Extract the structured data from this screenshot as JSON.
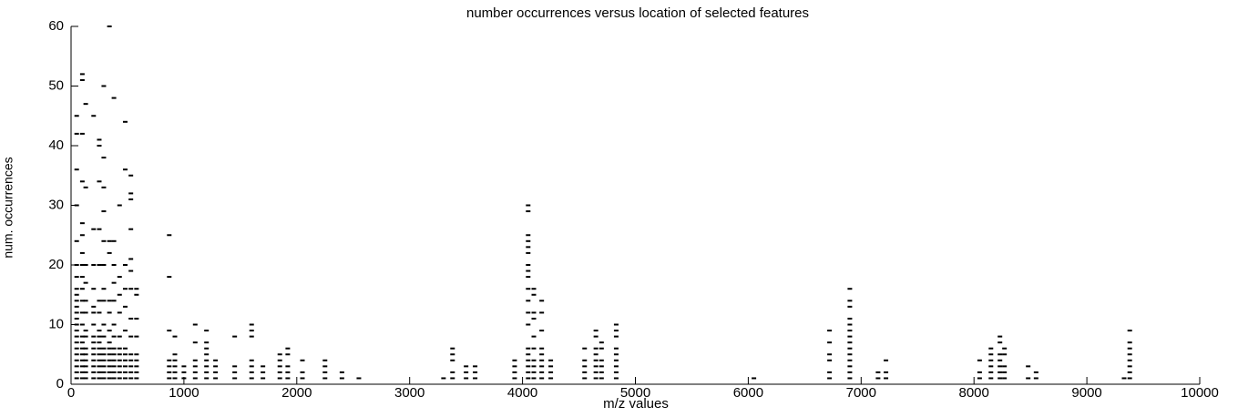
{
  "chart_data": {
    "type": "scatter",
    "title": "number occurrences versus location of selected features",
    "xlabel": "m/z values",
    "ylabel": "num. occurrences",
    "color": "#000000",
    "xlim": [
      0,
      10000
    ],
    "xticks": [
      0,
      1000,
      2000,
      3000,
      4000,
      5000,
      6000,
      7000,
      8000,
      9000,
      10000
    ],
    "ylim": [
      0,
      60
    ],
    "yticks": [
      0,
      10,
      20,
      30,
      40,
      50,
      60
    ],
    "x": [
      50,
      50,
      50,
      50,
      50,
      50,
      50,
      50,
      50,
      50,
      50,
      50,
      50,
      50,
      50,
      50,
      50,
      50,
      50,
      50,
      50,
      50,
      50,
      100,
      100,
      100,
      100,
      100,
      100,
      100,
      100,
      100,
      100,
      100,
      100,
      100,
      100,
      100,
      100,
      100,
      100,
      100,
      100,
      100,
      130,
      130,
      130,
      130,
      130,
      130,
      130,
      130,
      130,
      130,
      130,
      130,
      130,
      130,
      200,
      200,
      200,
      200,
      200,
      200,
      200,
      200,
      200,
      200,
      200,
      200,
      200,
      200,
      200,
      250,
      250,
      250,
      250,
      250,
      250,
      250,
      250,
      250,
      250,
      250,
      250,
      250,
      250,
      250,
      250,
      290,
      290,
      290,
      290,
      290,
      290,
      290,
      290,
      290,
      290,
      290,
      290,
      290,
      290,
      290,
      290,
      340,
      340,
      340,
      340,
      340,
      340,
      340,
      340,
      340,
      340,
      340,
      340,
      340,
      380,
      380,
      380,
      380,
      380,
      380,
      380,
      380,
      380,
      380,
      380,
      380,
      380,
      430,
      430,
      430,
      430,
      430,
      430,
      430,
      430,
      430,
      430,
      430,
      480,
      480,
      480,
      480,
      480,
      480,
      480,
      480,
      480,
      480,
      480,
      480,
      530,
      530,
      530,
      530,
      530,
      530,
      530,
      530,
      530,
      530,
      530,
      530,
      530,
      530,
      580,
      580,
      580,
      580,
      580,
      580,
      580,
      580,
      580,
      870,
      870,
      870,
      870,
      870,
      870,
      870,
      920,
      920,
      920,
      920,
      920,
      920,
      1000,
      1000,
      1000,
      1100,
      1100,
      1100,
      1100,
      1100,
      1100,
      1200,
      1200,
      1200,
      1200,
      1200,
      1200,
      1200,
      1200,
      1280,
      1280,
      1280,
      1280,
      1450,
      1450,
      1450,
      1450,
      1600,
      1600,
      1600,
      1600,
      1600,
      1600,
      1600,
      1700,
      1700,
      1700,
      1850,
      1850,
      1850,
      1850,
      1850,
      1920,
      1920,
      1920,
      1920,
      1920,
      2050,
      2050,
      2050,
      2250,
      2250,
      2250,
      2250,
      2400,
      2400,
      2550,
      3300,
      3380,
      3380,
      3380,
      3380,
      3380,
      3500,
      3500,
      3500,
      3580,
      3580,
      3580,
      3930,
      3930,
      3930,
      3930,
      4050,
      4050,
      4050,
      4050,
      4050,
      4050,
      4050,
      4050,
      4050,
      4050,
      4050,
      4050,
      4050,
      4050,
      4050,
      4050,
      4050,
      4050,
      4050,
      4100,
      4100,
      4100,
      4100,
      4100,
      4100,
      4100,
      4100,
      4100,
      4100,
      4170,
      4170,
      4170,
      4170,
      4170,
      4170,
      4170,
      4170,
      4170,
      4250,
      4250,
      4250,
      4250,
      4550,
      4550,
      4550,
      4550,
      4550,
      4650,
      4650,
      4650,
      4650,
      4650,
      4650,
      4650,
      4650,
      4700,
      4700,
      4700,
      4700,
      4700,
      4700,
      4830,
      4830,
      4830,
      4830,
      4830,
      4830,
      4830,
      4830,
      4830,
      6050,
      6720,
      6720,
      6720,
      6720,
      6720,
      6720,
      6900,
      6900,
      6900,
      6900,
      6900,
      6900,
      6900,
      6900,
      6900,
      6900,
      6900,
      6900,
      6900,
      6900,
      7150,
      7150,
      7220,
      7220,
      7220,
      8050,
      8050,
      8050,
      8150,
      8150,
      8150,
      8150,
      8150,
      8150,
      8230,
      8230,
      8230,
      8230,
      8230,
      8230,
      8230,
      8270,
      8270,
      8270,
      8270,
      8270,
      8480,
      8480,
      8550,
      8550,
      9330,
      9380,
      9380,
      9380,
      9380,
      9380,
      9380,
      9380,
      9380
    ],
    "y": [
      1,
      2,
      3,
      4,
      5,
      6,
      7,
      8,
      9,
      10,
      11,
      12,
      13,
      14,
      15,
      16,
      18,
      20,
      24,
      30,
      36,
      42,
      45,
      1,
      2,
      3,
      4,
      5,
      6,
      7,
      8,
      10,
      12,
      14,
      16,
      18,
      20,
      22,
      25,
      27,
      34,
      42,
      51,
      52,
      1,
      2,
      3,
      4,
      5,
      6,
      8,
      9,
      12,
      14,
      17,
      20,
      33,
      47,
      1,
      2,
      3,
      4,
      5,
      6,
      7,
      8,
      10,
      12,
      13,
      16,
      20,
      26,
      45,
      1,
      2,
      3,
      4,
      5,
      6,
      7,
      8,
      9,
      12,
      14,
      20,
      26,
      34,
      40,
      41,
      1,
      2,
      3,
      4,
      5,
      6,
      8,
      10,
      14,
      16,
      20,
      24,
      29,
      33,
      38,
      50,
      1,
      2,
      3,
      4,
      5,
      6,
      7,
      9,
      12,
      14,
      22,
      24,
      60,
      1,
      2,
      3,
      4,
      5,
      6,
      8,
      10,
      14,
      17,
      20,
      24,
      48,
      1,
      2,
      3,
      4,
      5,
      6,
      8,
      12,
      15,
      18,
      30,
      1,
      2,
      3,
      4,
      5,
      6,
      9,
      13,
      16,
      20,
      36,
      44,
      1,
      2,
      3,
      4,
      5,
      8,
      11,
      16,
      19,
      21,
      26,
      31,
      32,
      35,
      1,
      2,
      3,
      4,
      5,
      8,
      11,
      15,
      16,
      1,
      2,
      3,
      4,
      9,
      18,
      25,
      1,
      2,
      3,
      4,
      5,
      8,
      1,
      2,
      3,
      1,
      2,
      3,
      4,
      7,
      10,
      1,
      2,
      3,
      4,
      5,
      6,
      7,
      9,
      1,
      2,
      3,
      4,
      1,
      2,
      3,
      8,
      1,
      2,
      3,
      4,
      8,
      9,
      10,
      1,
      2,
      3,
      1,
      2,
      3,
      4,
      5,
      1,
      2,
      3,
      5,
      6,
      1,
      2,
      4,
      1,
      2,
      3,
      4,
      1,
      2,
      1,
      1,
      1,
      2,
      4,
      5,
      6,
      1,
      2,
      3,
      1,
      2,
      3,
      1,
      2,
      3,
      4,
      1,
      2,
      3,
      4,
      5,
      6,
      10,
      12,
      14,
      16,
      18,
      19,
      20,
      22,
      23,
      24,
      25,
      29,
      30,
      1,
      2,
      3,
      4,
      6,
      8,
      11,
      12,
      15,
      16,
      1,
      2,
      3,
      4,
      5,
      6,
      9,
      12,
      14,
      1,
      2,
      3,
      4,
      1,
      2,
      3,
      4,
      6,
      1,
      2,
      3,
      4,
      5,
      6,
      8,
      9,
      1,
      2,
      3,
      4,
      6,
      7,
      1,
      2,
      3,
      4,
      5,
      6,
      8,
      9,
      10,
      1,
      1,
      2,
      4,
      5,
      7,
      9,
      1,
      2,
      3,
      4,
      5,
      6,
      7,
      8,
      9,
      10,
      11,
      13,
      14,
      16,
      1,
      2,
      1,
      2,
      4,
      1,
      2,
      4,
      1,
      2,
      3,
      4,
      5,
      6,
      1,
      2,
      3,
      4,
      5,
      7,
      8,
      1,
      2,
      3,
      5,
      6,
      1,
      3,
      1,
      2,
      1,
      1,
      2,
      3,
      4,
      5,
      6,
      7,
      9
    ]
  }
}
